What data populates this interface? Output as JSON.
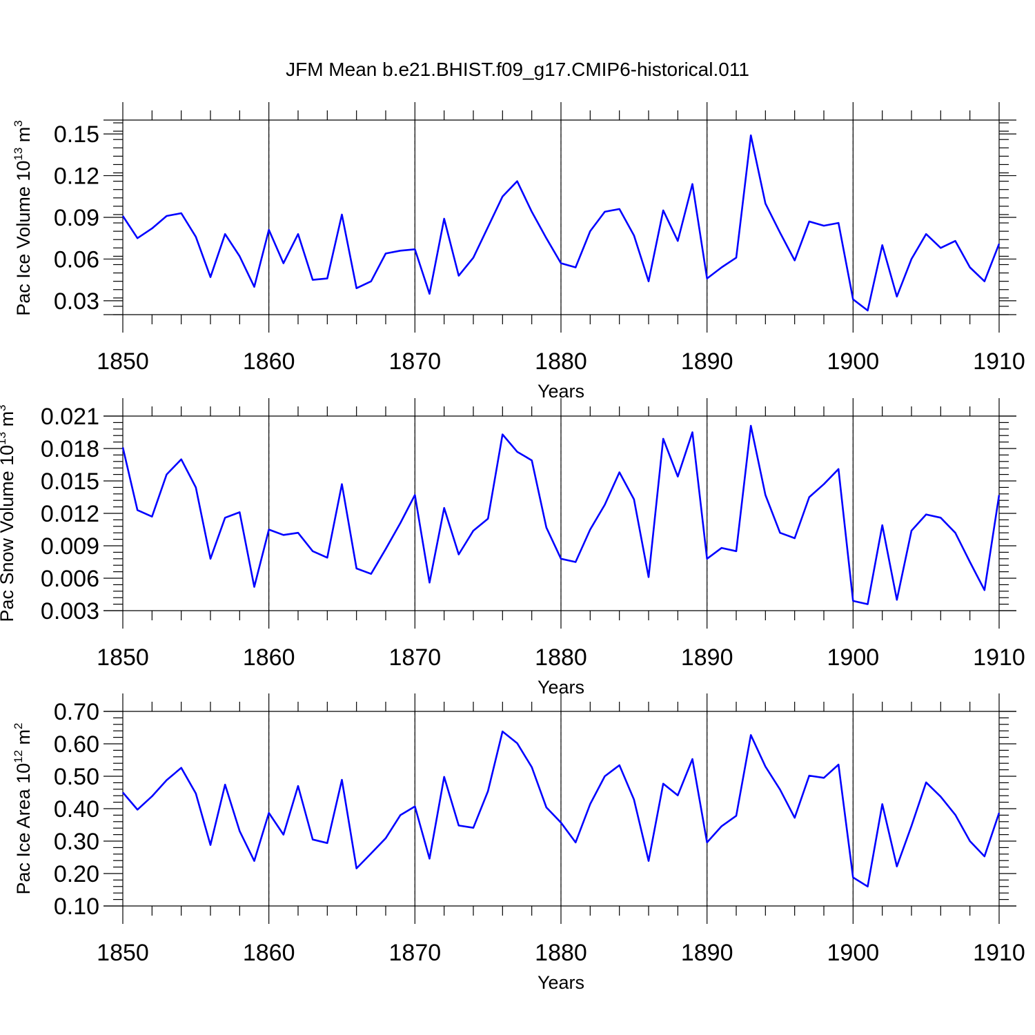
{
  "title": "JFM Mean b.e21.BHIST.f09_g17.CMIP6-historical.011",
  "chart_data": [
    {
      "type": "line",
      "ylabel": "Pac Ice Volume 10",
      "ylabel_exp": "13",
      "ylabel_unit": " m",
      "ylabel_unit_exp": "3",
      "xlabel": "Years",
      "xlim": [
        1850,
        1910
      ],
      "ylim": [
        0.02,
        0.16
      ],
      "yticks": [
        0.03,
        0.06,
        0.09,
        0.12,
        0.15
      ],
      "ytick_labels": [
        "0.03",
        "0.06",
        "0.09",
        "0.12",
        "0.15"
      ],
      "xticks": [
        1850,
        1860,
        1870,
        1880,
        1890,
        1900,
        1910
      ],
      "xtick_labels": [
        "1850",
        "1860",
        "1870",
        "1880",
        "1890",
        "1900",
        "1910"
      ],
      "grid_x": [
        1860,
        1870,
        1880,
        1890,
        1900
      ],
      "color": "#0000ff",
      "x_start": 1850,
      "values": [
        0.091,
        0.075,
        0.082,
        0.091,
        0.093,
        0.076,
        0.047,
        0.078,
        0.062,
        0.04,
        0.081,
        0.057,
        0.078,
        0.045,
        0.046,
        0.092,
        0.039,
        0.044,
        0.064,
        0.066,
        0.067,
        0.035,
        0.089,
        0.048,
        0.061,
        0.083,
        0.105,
        0.116,
        0.094,
        0.075,
        0.057,
        0.054,
        0.08,
        0.094,
        0.096,
        0.077,
        0.044,
        0.095,
        0.073,
        0.114,
        0.046,
        0.054,
        0.061,
        0.149,
        0.1,
        0.079,
        0.059,
        0.087,
        0.084,
        0.086,
        0.031,
        0.023,
        0.07,
        0.033,
        0.06,
        0.078,
        0.068,
        0.073,
        0.054,
        0.044,
        0.071
      ]
    },
    {
      "type": "line",
      "ylabel": "Pac Snow Volume 10",
      "ylabel_exp": "13",
      "ylabel_unit": " m",
      "ylabel_unit_exp": "3",
      "xlabel": "Years",
      "xlim": [
        1850,
        1910
      ],
      "ylim": [
        0.003,
        0.021
      ],
      "yticks": [
        0.003,
        0.006,
        0.009,
        0.012,
        0.015,
        0.018,
        0.021
      ],
      "ytick_labels": [
        "0.003",
        "0.006",
        "0.009",
        "0.012",
        "0.015",
        "0.018",
        "0.021"
      ],
      "xticks": [
        1850,
        1860,
        1870,
        1880,
        1890,
        1900,
        1910
      ],
      "xtick_labels": [
        "1850",
        "1860",
        "1870",
        "1880",
        "1890",
        "1900",
        "1910"
      ],
      "grid_x": [
        1860,
        1870,
        1880,
        1890,
        1900
      ],
      "color": "#0000ff",
      "x_start": 1850,
      "values": [
        0.0181,
        0.0123,
        0.0117,
        0.0156,
        0.017,
        0.0144,
        0.0078,
        0.0116,
        0.0121,
        0.0052,
        0.0105,
        0.01,
        0.0102,
        0.0085,
        0.0079,
        0.0147,
        0.0069,
        0.0064,
        0.0087,
        0.0111,
        0.0137,
        0.0056,
        0.0125,
        0.0082,
        0.0104,
        0.0115,
        0.0193,
        0.0177,
        0.0169,
        0.0107,
        0.0078,
        0.0075,
        0.0105,
        0.0128,
        0.0158,
        0.0133,
        0.0061,
        0.0189,
        0.0154,
        0.0195,
        0.0078,
        0.0088,
        0.0085,
        0.0201,
        0.0137,
        0.0102,
        0.0097,
        0.0135,
        0.0147,
        0.0161,
        0.0039,
        0.0036,
        0.0109,
        0.004,
        0.0104,
        0.0119,
        0.0116,
        0.0102,
        0.0075,
        0.0049,
        0.0137
      ]
    },
    {
      "type": "line",
      "ylabel": "Pac Ice Area 10",
      "ylabel_exp": "12",
      "ylabel_unit": " m",
      "ylabel_unit_exp": "2",
      "xlabel": "Years",
      "xlim": [
        1850,
        1910
      ],
      "ylim": [
        0.1,
        0.7
      ],
      "yticks": [
        0.1,
        0.2,
        0.3,
        0.4,
        0.5,
        0.6,
        0.7
      ],
      "ytick_labels": [
        "0.10",
        "0.20",
        "0.30",
        "0.40",
        "0.50",
        "0.60",
        "0.70"
      ],
      "xticks": [
        1850,
        1860,
        1870,
        1880,
        1890,
        1900,
        1910
      ],
      "xtick_labels": [
        "1850",
        "1860",
        "1870",
        "1880",
        "1890",
        "1900",
        "1910"
      ],
      "grid_x": [
        1860,
        1870,
        1880,
        1890,
        1900
      ],
      "color": "#0000ff",
      "x_start": 1850,
      "values": [
        0.45,
        0.397,
        0.438,
        0.488,
        0.526,
        0.447,
        0.288,
        0.474,
        0.331,
        0.239,
        0.387,
        0.32,
        0.47,
        0.305,
        0.294,
        0.489,
        0.216,
        0.262,
        0.309,
        0.38,
        0.407,
        0.246,
        0.498,
        0.348,
        0.341,
        0.454,
        0.638,
        0.602,
        0.528,
        0.404,
        0.357,
        0.296,
        0.414,
        0.5,
        0.534,
        0.428,
        0.239,
        0.477,
        0.441,
        0.553,
        0.296,
        0.346,
        0.378,
        0.627,
        0.53,
        0.459,
        0.372,
        0.502,
        0.495,
        0.536,
        0.188,
        0.16,
        0.414,
        0.222,
        0.347,
        0.481,
        0.437,
        0.381,
        0.3,
        0.253,
        0.387
      ]
    }
  ]
}
